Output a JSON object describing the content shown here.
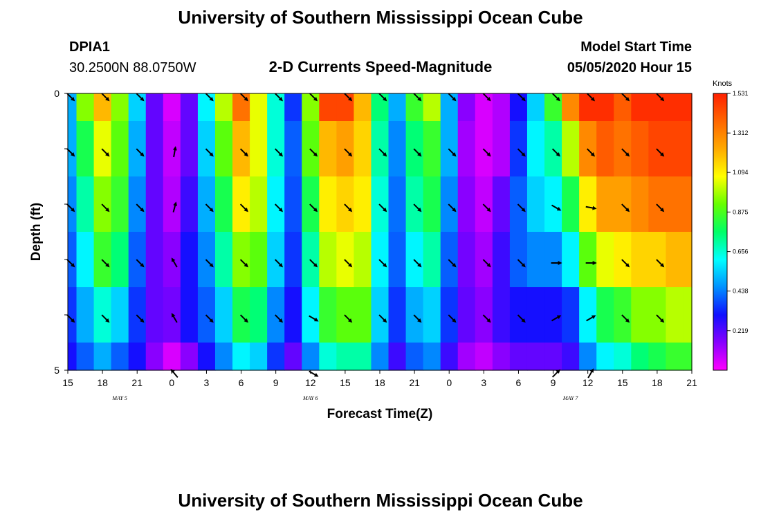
{
  "page": {
    "title": "University of Southern Mississippi Ocean Cube",
    "footer_title": "University of Southern Mississippi Ocean Cube",
    "station_id": "DPIA1",
    "station_coords": "30.2500N 88.0750W",
    "subtitle": "2-D Currents Speed-Magnitude",
    "model_start_label": "Model Start Time",
    "model_start_value": "05/05/2020 Hour 15"
  },
  "colors": {
    "scale": [
      "#ff00ff",
      "#8800ff",
      "#1010ff",
      "#0090ff",
      "#00ffff",
      "#00ff66",
      "#66ff00",
      "#ffff00",
      "#ffaa00",
      "#ff6600",
      "#ff2000"
    ]
  },
  "chart_data": {
    "type": "heatmap",
    "title": "2-D Currents Speed-Magnitude",
    "xlabel": "Forecast Time(Z)",
    "ylabel": "Depth (ft)",
    "x_tick_labels": [
      "15",
      "18",
      "21",
      "0",
      "3",
      "6",
      "9",
      "12",
      "15",
      "18",
      "21",
      "0",
      "3",
      "6",
      "9",
      "12",
      "15",
      "18",
      "21"
    ],
    "y_tick_labels": [
      "0",
      "5"
    ],
    "y_range": [
      0,
      5
    ],
    "date_labels": [
      {
        "label": "MAY 5",
        "x_hour": 4.5
      },
      {
        "label": "MAY 6",
        "x_hour": 21
      },
      {
        "label": "MAY 7",
        "x_hour": 43.5
      }
    ],
    "colorbar": {
      "unit": "Knots",
      "min": 0,
      "max": 1.531,
      "tick_labels": [
        "1.531",
        "1.312",
        "1.094",
        "0.875",
        "0.656",
        "0.438",
        "0.219"
      ]
    },
    "hours": [
      0,
      1.5,
      3,
      4.5,
      6,
      7.5,
      9,
      10.5,
      12,
      13.5,
      15,
      16.5,
      18,
      19.5,
      21,
      22.5,
      24,
      25.5,
      27,
      28.5,
      30,
      31.5,
      33,
      34.5,
      36,
      37.5,
      39,
      40.5,
      42,
      43.5,
      45,
      46.5,
      48,
      49.5,
      51,
      52.5,
      54
    ],
    "depth_layers": [
      0,
      1,
      2,
      3,
      4,
      5
    ],
    "speed": [
      [
        0.5,
        0.95,
        1.2,
        0.95,
        0.55,
        0.2,
        0.05,
        0.2,
        0.6,
        1.0,
        1.35,
        1.05,
        0.65,
        0.35,
        0.95,
        1.45,
        1.45,
        1.2,
        0.75,
        0.5,
        0.85,
        1.0,
        0.5,
        0.15,
        0.05,
        0.1,
        0.3,
        0.55,
        0.85,
        1.3,
        1.5,
        1.5,
        1.4,
        1.5,
        1.5,
        1.5,
        1.5
      ],
      [
        0.5,
        0.8,
        1.05,
        0.9,
        0.5,
        0.2,
        0.08,
        0.2,
        0.55,
        0.9,
        1.2,
        1.05,
        0.65,
        0.4,
        0.9,
        1.2,
        1.25,
        1.15,
        0.7,
        0.45,
        0.75,
        0.85,
        0.5,
        0.12,
        0.05,
        0.1,
        0.35,
        0.6,
        0.7,
        1.0,
        1.3,
        1.4,
        1.35,
        1.4,
        1.45,
        1.45,
        1.45
      ],
      [
        0.45,
        0.7,
        0.95,
        0.85,
        0.45,
        0.2,
        0.1,
        0.25,
        0.5,
        0.8,
        1.1,
        1.0,
        0.6,
        0.38,
        0.8,
        1.1,
        1.15,
        1.1,
        0.65,
        0.42,
        0.7,
        0.8,
        0.45,
        0.15,
        0.08,
        0.2,
        0.4,
        0.55,
        0.6,
        0.8,
        1.1,
        1.25,
        1.25,
        1.3,
        1.35,
        1.35,
        1.35
      ],
      [
        0.4,
        0.6,
        0.85,
        0.75,
        0.4,
        0.2,
        0.15,
        0.3,
        0.45,
        0.7,
        0.95,
        0.9,
        0.55,
        0.35,
        0.7,
        1.0,
        1.05,
        1.0,
        0.6,
        0.4,
        0.6,
        0.7,
        0.4,
        0.18,
        0.12,
        0.25,
        0.4,
        0.45,
        0.45,
        0.6,
        0.9,
        1.05,
        1.1,
        1.15,
        1.15,
        1.2,
        1.2
      ],
      [
        0.35,
        0.5,
        0.65,
        0.55,
        0.35,
        0.2,
        0.18,
        0.3,
        0.4,
        0.55,
        0.8,
        0.75,
        0.45,
        0.3,
        0.6,
        0.85,
        0.9,
        0.9,
        0.55,
        0.35,
        0.5,
        0.55,
        0.35,
        0.2,
        0.15,
        0.25,
        0.3,
        0.3,
        0.3,
        0.35,
        0.6,
        0.8,
        0.85,
        0.95,
        0.95,
        1.0,
        1.0
      ],
      [
        0.3,
        0.4,
        0.5,
        0.4,
        0.3,
        0.15,
        0.05,
        0.15,
        0.3,
        0.45,
        0.6,
        0.55,
        0.35,
        0.2,
        0.45,
        0.65,
        0.7,
        0.7,
        0.45,
        0.25,
        0.4,
        0.45,
        0.25,
        0.12,
        0.08,
        0.15,
        0.2,
        0.2,
        0.2,
        0.25,
        0.45,
        0.6,
        0.65,
        0.75,
        0.8,
        0.85,
        0.85
      ]
    ],
    "arrow_hours": [
      0,
      3,
      6,
      9,
      12,
      15,
      18,
      21,
      24,
      27,
      30,
      33,
      36,
      39,
      42,
      45,
      48,
      51
    ],
    "arrow_depths": [
      0,
      1,
      2,
      3,
      4,
      5
    ],
    "arrow_direction_deg": [
      [
        135,
        135,
        135,
        null,
        135,
        135,
        135,
        135,
        135,
        135,
        135,
        135,
        135,
        135,
        135,
        135,
        135,
        135
      ],
      [
        135,
        135,
        135,
        10,
        135,
        135,
        135,
        135,
        135,
        135,
        135,
        135,
        135,
        135,
        135,
        135,
        135,
        135
      ],
      [
        135,
        135,
        135,
        15,
        135,
        135,
        135,
        135,
        135,
        135,
        135,
        135,
        135,
        135,
        120,
        100,
        135,
        135
      ],
      [
        135,
        135,
        135,
        330,
        135,
        135,
        135,
        135,
        135,
        135,
        135,
        135,
        135,
        135,
        90,
        90,
        135,
        135
      ],
      [
        135,
        135,
        135,
        330,
        135,
        135,
        135,
        120,
        135,
        135,
        135,
        135,
        135,
        135,
        60,
        60,
        135,
        135
      ],
      [
        null,
        null,
        null,
        320,
        null,
        null,
        null,
        120,
        null,
        null,
        null,
        null,
        null,
        null,
        45,
        30,
        null,
        null
      ]
    ]
  }
}
